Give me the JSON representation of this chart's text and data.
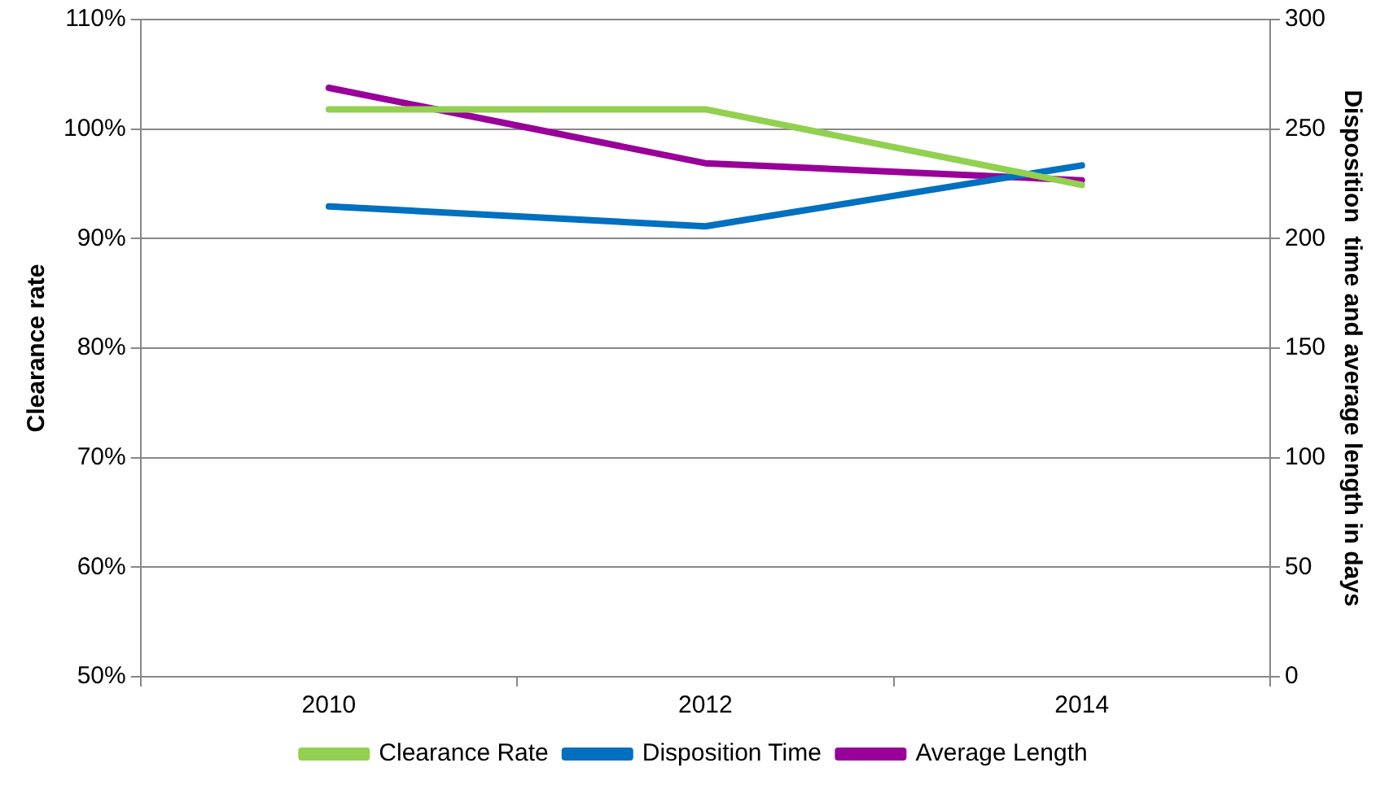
{
  "chart_data": {
    "type": "line",
    "categories": [
      "2010",
      "2012",
      "2014"
    ],
    "ylabel": "Clearance rate",
    "y2label": "Disposition  time and average length in days",
    "ylim": [
      50,
      110
    ],
    "yticks": [
      {
        "value": 50,
        "label": "50%"
      },
      {
        "value": 60,
        "label": "60%"
      },
      {
        "value": 70,
        "label": "70%"
      },
      {
        "value": 80,
        "label": "80%"
      },
      {
        "value": 90,
        "label": "90%"
      },
      {
        "value": 100,
        "label": "100%"
      },
      {
        "value": 110,
        "label": "110%"
      }
    ],
    "y2lim": [
      0,
      300
    ],
    "y2ticks": [
      0,
      50,
      100,
      150,
      200,
      250,
      300
    ],
    "grid": "y",
    "legend": "bottom",
    "marker": "none",
    "line_style": "solid",
    "series": [
      {
        "name": "Clearance Rate",
        "color": "#92d050",
        "values": [
          101.8,
          101.8,
          94.9
        ]
      },
      {
        "name": "Disposition Time",
        "color": "#0070c0",
        "axis": "y2",
        "values": [
          214.7,
          205.6,
          233.4
        ]
      },
      {
        "name": "Average Length",
        "color": "#990099",
        "axis": "y2",
        "values": [
          268.8,
          234.4,
          226.6
        ]
      }
    ]
  }
}
